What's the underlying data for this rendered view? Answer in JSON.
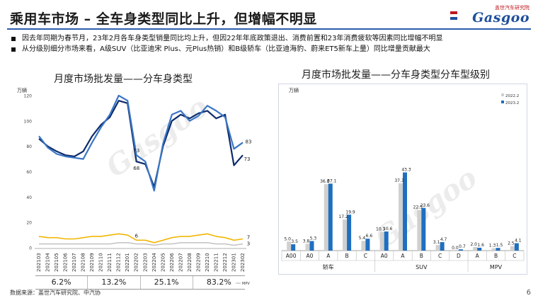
{
  "header": {
    "title": "乘用车市场 – 全车身类型同比上升，但增幅不明显",
    "logo_top": "盖世汽车研究院",
    "logo_main": "Gasgoo"
  },
  "bullets": [
    "因去年同期为春节月，23年2月各车身类型销量同比均上升，但因22年年底政策退出、消费前置和23年消费疲软等因素同比增幅不明显",
    "从分级别细分市场来看，A级SUV（比亚迪宋 Plus、元Plus热销）和B级轿车（比亚迪海豹、蔚来ET5新车上量）同比增量贡献最大"
  ],
  "footer": {
    "source": "数据来源：盖世汽车研究院、中汽协",
    "page": "6"
  },
  "chart_data": [
    {
      "type": "line",
      "title": "月度市场批发量——分车身类型",
      "ylabel": "万辆",
      "ylim": [
        0,
        120
      ],
      "yticks": [
        0,
        20,
        40,
        60,
        80,
        100,
        120
      ],
      "grid": false,
      "x": [
        "202103",
        "202104",
        "202105",
        "202106",
        "202107",
        "202108",
        "202109",
        "202110",
        "202111",
        "202112",
        "202201",
        "202202",
        "202203",
        "202204",
        "202205",
        "202206",
        "202207",
        "202208",
        "202209",
        "202210",
        "202211",
        "202212",
        "202301",
        "202302"
      ],
      "series": [
        {
          "color": "#0d2c6b",
          "values": [
            86,
            80,
            76,
            73,
            72,
            76,
            88,
            97,
            103,
            116,
            114,
            68,
            66,
            48,
            80,
            100,
            105,
            102,
            106,
            108,
            102,
            105,
            65,
            73
          ]
        },
        {
          "color": "#3a76c4",
          "values": [
            88,
            79,
            74,
            72,
            71,
            70,
            83,
            95,
            105,
            120,
            116,
            73,
            68,
            45,
            82,
            105,
            108,
            100,
            104,
            112,
            108,
            103,
            78,
            83
          ]
        },
        {
          "color": "#f2b705",
          "values": [
            9,
            8,
            8,
            7,
            7,
            8,
            9,
            9,
            10,
            11,
            10,
            6,
            6,
            4,
            6,
            8,
            9,
            9,
            10,
            11,
            9,
            8,
            6,
            7
          ]
        },
        {
          "color": "#c6c6c6",
          "values": [
            3,
            3,
            3,
            3,
            3,
            3,
            3,
            3,
            3,
            4,
            4,
            3,
            3,
            2,
            3,
            3,
            4,
            4,
            4,
            4,
            3,
            3,
            2,
            3
          ]
        }
      ],
      "data_labels": [
        {
          "index": 11,
          "series": 0,
          "text": "68"
        },
        {
          "index": 11,
          "series": 1,
          "text": "73"
        },
        {
          "index": 11,
          "series": 2,
          "text": "6"
        },
        {
          "index": 23,
          "series": 1,
          "text": "83"
        },
        {
          "index": 23,
          "series": 0,
          "text": "73"
        },
        {
          "index": 23,
          "series": 2,
          "text": "7"
        },
        {
          "index": 23,
          "series": 3,
          "text": "3"
        }
      ],
      "legend": [
        "MPV"
      ],
      "growth_labels": [
        "6.2%",
        "13.2%",
        "25.1%",
        "83.2%"
      ]
    },
    {
      "type": "bar",
      "title": "月度市场批发量——分车身类型分车型级别",
      "ylabel": "万辆",
      "legend_position": "top-right",
      "groups": [
        {
          "name": "轿车",
          "categories": [
            "A00",
            "A0",
            "A",
            "B",
            "C"
          ]
        },
        {
          "name": "SUV",
          "categories": [
            "A0",
            "A",
            "B",
            "C",
            "D"
          ]
        },
        {
          "name": "MPV",
          "categories": [
            "A",
            "B",
            "C"
          ]
        }
      ],
      "series": [
        {
          "name": "2022.2",
          "color": "#d0d0d0",
          "values": [
            5.0,
            3.8,
            36.8,
            17.2,
            5.4,
            10.3,
            37.3,
            22.5,
            3.1,
            0.0,
            2.0,
            1.3,
            2.5
          ]
        },
        {
          "name": "2023.2",
          "color": "#1f6fbf",
          "values": [
            3.5,
            5.3,
            37.1,
            19.9,
            6.6,
            10.6,
            43.3,
            23.6,
            4.7,
            0.7,
            1.6,
            1.5,
            4.1
          ]
        }
      ],
      "value_labels": [
        [
          "5.0",
          "3.5"
        ],
        [
          "3.8",
          "5.3"
        ],
        [
          "36.8",
          "37.1"
        ],
        [
          "17.2",
          "19.9"
        ],
        [
          "5.4",
          "6.6"
        ],
        [
          "10.3",
          "10.6"
        ],
        [
          "37.3",
          "43.3"
        ],
        [
          "22.5",
          "23.6"
        ],
        [
          "3.1",
          "4.7"
        ],
        [
          "0.0",
          "0.7"
        ],
        [
          "2.0",
          "1.6"
        ],
        [
          "1.3",
          "1.5"
        ],
        [
          "2.5",
          "4.1"
        ]
      ]
    }
  ]
}
